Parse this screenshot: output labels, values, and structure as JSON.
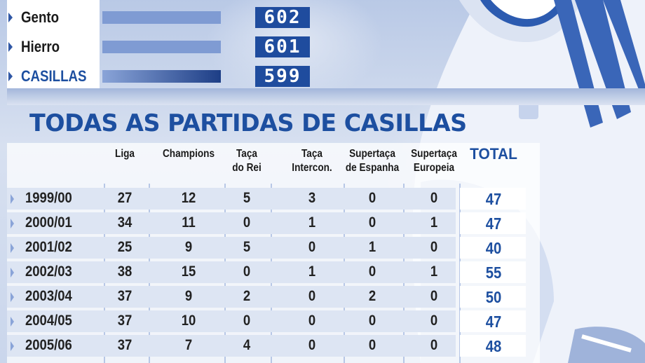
{
  "ranking": {
    "rows": [
      {
        "name": "Gento",
        "value": "602",
        "fraction": 0.98,
        "highlight": false
      },
      {
        "name": "Hierro",
        "value": "601",
        "fraction": 0.98,
        "highlight": false
      },
      {
        "name": "CASILLAS",
        "value": "599",
        "fraction": 0.98,
        "highlight": true
      }
    ]
  },
  "title": "TODAS AS PARTIDAS DE CASILLAS",
  "columns": [
    {
      "label": "Liga"
    },
    {
      "label": "Champions"
    },
    {
      "label": "Taça\ndo Rei"
    },
    {
      "label": "Taça\nIntercon."
    },
    {
      "label": "Supertaça\nde Espanha"
    },
    {
      "label": "Supertaça\nEuropeia"
    },
    {
      "label": "TOTAL"
    }
  ],
  "rows": [
    {
      "season": "1999/00",
      "values": [
        "27",
        "12",
        "5",
        "3",
        "0",
        "0"
      ],
      "total": "47"
    },
    {
      "season": "2000/01",
      "values": [
        "34",
        "11",
        "0",
        "1",
        "0",
        "1"
      ],
      "total": "47"
    },
    {
      "season": "2001/02",
      "values": [
        "25",
        "9",
        "5",
        "0",
        "1",
        "0"
      ],
      "total": "40"
    },
    {
      "season": "2002/03",
      "values": [
        "38",
        "15",
        "0",
        "1",
        "0",
        "1"
      ],
      "total": "55"
    },
    {
      "season": "2003/04",
      "values": [
        "37",
        "9",
        "2",
        "0",
        "2",
        "0"
      ],
      "total": "50"
    },
    {
      "season": "2004/05",
      "values": [
        "37",
        "10",
        "0",
        "0",
        "0",
        "0"
      ],
      "total": "47"
    },
    {
      "season": "2005/06",
      "values": [
        "37",
        "7",
        "4",
        "0",
        "0",
        "0"
      ],
      "total": "48"
    }
  ],
  "colors": {
    "accent": "#1d4fa0",
    "bar": "#7f9bd3",
    "value_box": "#1f4c9e"
  },
  "chart_data": [
    {
      "type": "bar",
      "categories": [
        "Gento",
        "Hierro",
        "CASILLAS"
      ],
      "values": [
        602,
        601,
        599
      ]
    },
    {
      "type": "table",
      "title": "TODAS AS PARTIDAS DE CASILLAS",
      "columns": [
        "Liga",
        "Champions",
        "Taça do Rei",
        "Taça Intercon.",
        "Supertaça de Espanha",
        "Supertaça Europeia",
        "TOTAL"
      ],
      "rows": [
        [
          "1999/00",
          27,
          12,
          5,
          3,
          0,
          0,
          47
        ],
        [
          "2000/01",
          34,
          11,
          0,
          1,
          0,
          1,
          47
        ],
        [
          "2001/02",
          25,
          9,
          5,
          0,
          1,
          0,
          40
        ],
        [
          "2002/03",
          38,
          15,
          0,
          1,
          0,
          1,
          55
        ],
        [
          "2003/04",
          37,
          9,
          2,
          0,
          2,
          0,
          50
        ],
        [
          "2004/05",
          37,
          10,
          0,
          0,
          0,
          0,
          47
        ],
        [
          "2005/06",
          37,
          7,
          4,
          0,
          0,
          0,
          48
        ]
      ]
    }
  ]
}
